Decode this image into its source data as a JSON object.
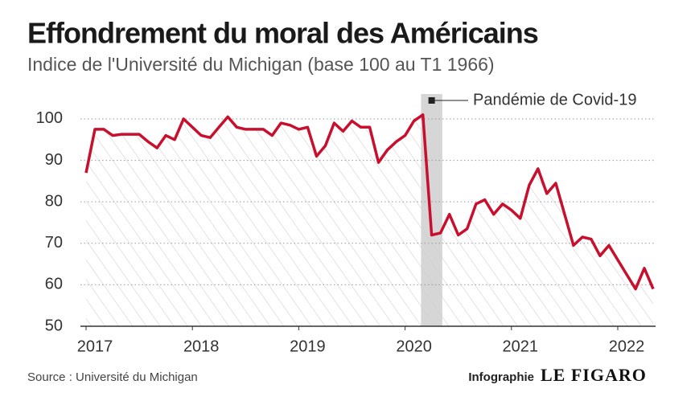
{
  "chart_data": {
    "type": "line",
    "title": "Effondrement du moral des Américains",
    "subtitle": "Indice de l'Université du Michigan (base 100 au T1 1966)",
    "annotation": "Pandémie de Covid-19",
    "shade": [
      2020.15,
      2020.35
    ],
    "source": "Source : Université du Michigan",
    "credit": "Infographie",
    "brand": "LE FIGARO",
    "xlim": [
      2017,
      2022.333
    ],
    "xticks": [
      2017,
      2018,
      2019,
      2020,
      2021,
      2022
    ],
    "ylim": [
      50,
      106
    ],
    "yticks": [
      50,
      60,
      70,
      80,
      90,
      100
    ],
    "grid": true,
    "series": [
      {
        "color": "#c8102e",
        "x": [
          2017,
          2017.083,
          2017.167,
          2017.25,
          2017.333,
          2017.417,
          2017.5,
          2017.583,
          2017.667,
          2017.75,
          2017.833,
          2017.917,
          2018,
          2018.083,
          2018.167,
          2018.25,
          2018.333,
          2018.417,
          2018.5,
          2018.583,
          2018.667,
          2018.75,
          2018.833,
          2018.917,
          2019,
          2019.083,
          2019.167,
          2019.25,
          2019.333,
          2019.417,
          2019.5,
          2019.583,
          2019.667,
          2019.75,
          2019.833,
          2019.917,
          2020,
          2020.083,
          2020.167,
          2020.25,
          2020.333,
          2020.417,
          2020.5,
          2020.583,
          2020.667,
          2020.75,
          2020.833,
          2020.917,
          2021,
          2021.083,
          2021.167,
          2021.25,
          2021.333,
          2021.417,
          2021.5,
          2021.583,
          2021.667,
          2021.75,
          2021.833,
          2021.917,
          2022,
          2022.083,
          2022.167,
          2022.25,
          2022.333
        ],
        "values": [
          87,
          97.5,
          97.5,
          96,
          96.3,
          96.3,
          96.3,
          94.5,
          93,
          96,
          95,
          100,
          98,
          96,
          95.5,
          98,
          100.5,
          98,
          97.5,
          97.5,
          97.5,
          96,
          99,
          98.5,
          97.5,
          98,
          91,
          93.5,
          99,
          97,
          99.5,
          98,
          98,
          89.5,
          92.5,
          94.5,
          96,
          99.5,
          101,
          72,
          72.5,
          77,
          72,
          73.5,
          79.5,
          80.5,
          77,
          79.5,
          78,
          76,
          84,
          88,
          82,
          84.5,
          77,
          69.5,
          71.5,
          71,
          67,
          69.5,
          66,
          62.5,
          59,
          64,
          59
        ]
      }
    ]
  }
}
